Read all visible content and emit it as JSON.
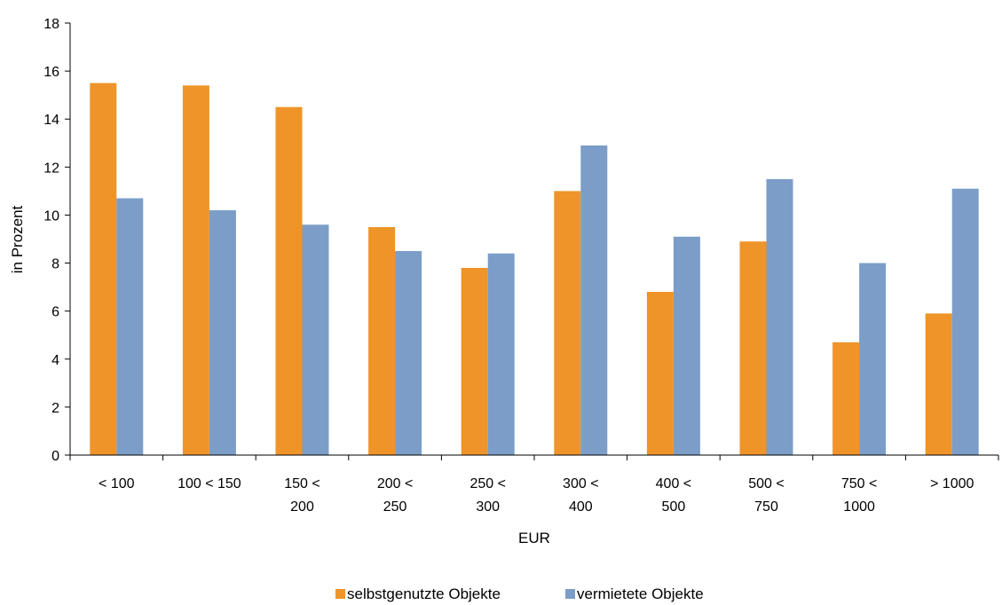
{
  "chart_data": {
    "type": "bar",
    "xlabel": "EUR",
    "ylabel": "in Prozent",
    "ylim": [
      0,
      18
    ],
    "yticks": [
      0,
      2,
      4,
      6,
      8,
      10,
      12,
      14,
      16,
      18
    ],
    "grid": false,
    "legend_position": "bottom",
    "categories": [
      [
        "< 100"
      ],
      [
        "100 <  150"
      ],
      [
        "150 <",
        "200"
      ],
      [
        "200 <",
        "250"
      ],
      [
        "250 <",
        "300"
      ],
      [
        "300 <",
        "400"
      ],
      [
        "400 <",
        "500"
      ],
      [
        "500 <",
        "750"
      ],
      [
        "750 <",
        "1000"
      ],
      [
        "> 1000"
      ]
    ],
    "series": [
      {
        "name": "selbstgenutzte Objekte",
        "color": "#ee9429",
        "values": [
          15.5,
          15.4,
          14.5,
          9.5,
          7.8,
          11.0,
          6.8,
          8.9,
          4.7,
          5.9
        ]
      },
      {
        "name": "vermietete Objekte",
        "color": "#7b9dc8",
        "values": [
          10.7,
          10.2,
          9.6,
          8.5,
          8.4,
          12.9,
          9.1,
          11.5,
          8.0,
          11.1
        ]
      }
    ]
  }
}
